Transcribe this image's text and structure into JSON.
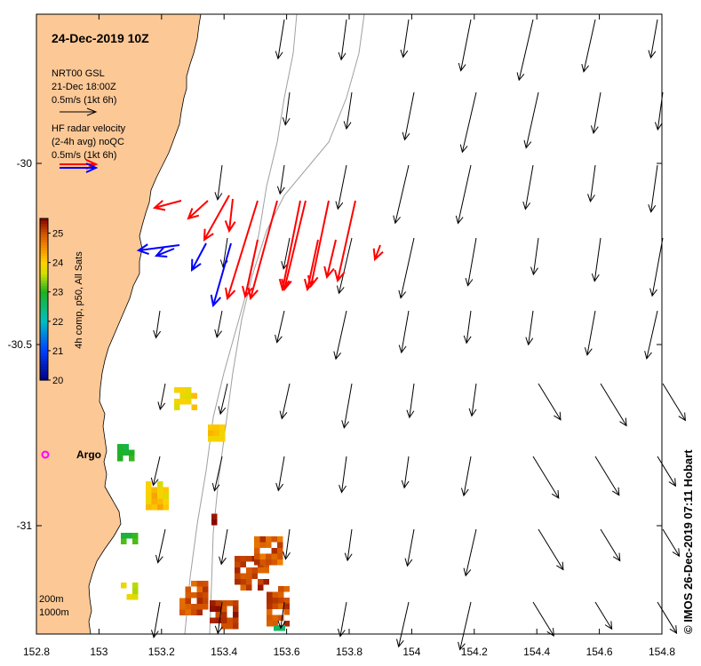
{
  "title": "24-Dec-2019 10Z",
  "model": {
    "name": "NRT00 GSL",
    "time": "21-Dec 18:00Z",
    "scale_label": "0.5m/s (1kt 6h)"
  },
  "radar": {
    "line1": "HF radar velocity",
    "line2": "(2-4h avg) noQC",
    "scale_label": "0.5m/s (1kt 6h)"
  },
  "colorbar": {
    "label": "4h comp, p50, All Sats",
    "ticks": [
      "25",
      "24",
      "23",
      "22",
      "21",
      "20"
    ],
    "min": 20,
    "max": 25.5
  },
  "x_axis": {
    "ticks": [
      "152.8",
      "153",
      "153.2",
      "153.4",
      "153.6",
      "153.8",
      "154",
      "154.2",
      "154.4",
      "154.6",
      "154.8"
    ]
  },
  "y_axis": {
    "ticks": [
      "-30",
      "-30.5",
      "-31"
    ]
  },
  "argo_label": "Argo",
  "isobaths": [
    "200m",
    "1000m"
  ],
  "credit": "© IMOS 26-Dec-2019 07:11 Hobart",
  "colors": {
    "land": "#fcc896",
    "radar_east": "#ff0000",
    "radar_west": "#0000ff",
    "argo": "#ff00ff",
    "isobath": "#a0a0a0"
  }
}
